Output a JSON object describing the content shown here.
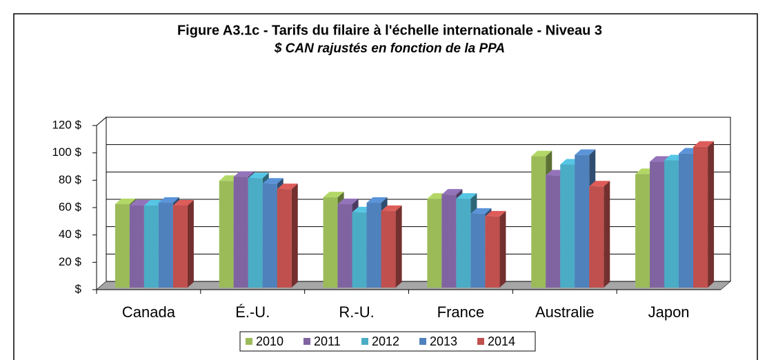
{
  "chart_data": {
    "type": "bar3d",
    "title": "Figure A3.1c - Tarifs du filaire à l'échelle internationale - Niveau 3",
    "subtitle": "$ CAN rajustés en fonction de la PPA",
    "categories": [
      "Canada",
      "É.-U.",
      "R.-U.",
      "France",
      "Australie",
      "Japon"
    ],
    "series": [
      {
        "name": "2010",
        "color": "#9bbb59",
        "values": [
          61,
          78,
          66,
          65,
          96,
          83
        ]
      },
      {
        "name": "2011",
        "color": "#8064a2",
        "values": [
          60,
          81,
          61,
          68,
          82,
          92
        ]
      },
      {
        "name": "2012",
        "color": "#4bacc6",
        "values": [
          60,
          80,
          55,
          65,
          90,
          93
        ]
      },
      {
        "name": "2013",
        "color": "#4f81bd",
        "values": [
          62,
          76,
          62,
          54,
          97,
          98
        ]
      },
      {
        "name": "2014",
        "color": "#c0504d",
        "values": [
          60,
          72,
          56,
          52,
          74,
          103
        ]
      }
    ],
    "ylim": [
      0,
      120
    ],
    "yticks": [
      {
        "value": 0,
        "label": "$"
      },
      {
        "value": 20,
        "label": "20 $"
      },
      {
        "value": 40,
        "label": "40 $"
      },
      {
        "value": 60,
        "label": "60 $"
      },
      {
        "value": 80,
        "label": "80 $"
      },
      {
        "value": 100,
        "label": "100 $"
      },
      {
        "value": 120,
        "label": "120 $"
      }
    ],
    "grid": true,
    "legend": "bottom"
  }
}
